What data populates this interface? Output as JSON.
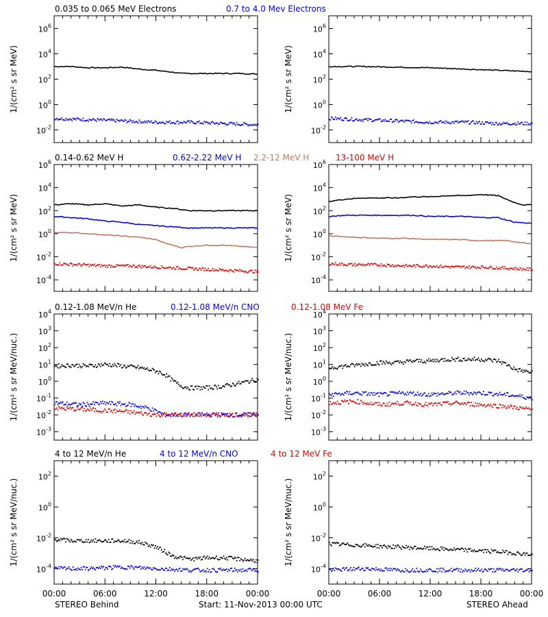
{
  "colors": {
    "black": "#000000",
    "blue": "#0000ee",
    "tan": "#c07860",
    "red": "#e00000"
  },
  "x_ticks": [
    "00:00",
    "06:00",
    "12:00",
    "18:00",
    "00:00"
  ],
  "footer": {
    "left": "STEREO Behind",
    "center": "Start: 11-Nov-2013 00:00 UTC",
    "right": "STEREO Ahead"
  },
  "rows": [
    {
      "ylabel": "1/(cm² s sr MeV)",
      "legend": [
        {
          "text": "0.035 to 0.065 MeV Electrons",
          "color": "black"
        },
        {
          "text": "0.7 to 4.0 Mev Electrons",
          "color": "blue"
        }
      ],
      "y_ticks": [
        {
          "base": "10",
          "exp": "6",
          "v": 6
        },
        {
          "base": "10",
          "exp": "4",
          "v": 4
        },
        {
          "base": "10",
          "exp": "2",
          "v": 2
        },
        {
          "base": "10",
          "exp": "0",
          "v": 0
        },
        {
          "base": "10",
          "exp": "-2",
          "v": -2
        }
      ]
    },
    {
      "ylabel": "1/(cm² s sr MeV)",
      "legend": [
        {
          "text": "0.14-0.62 MeV H",
          "color": "black"
        },
        {
          "text": "0.62-2.22 MeV H",
          "color": "blue"
        },
        {
          "text": "2.2-12 MeV H",
          "color": "tan"
        },
        {
          "text": "13-100 MeV H",
          "color": "red"
        }
      ],
      "y_ticks": [
        {
          "base": "10",
          "exp": "6",
          "v": 6
        },
        {
          "base": "10",
          "exp": "4",
          "v": 4
        },
        {
          "base": "10",
          "exp": "2",
          "v": 2
        },
        {
          "base": "10",
          "exp": "0",
          "v": 0
        },
        {
          "base": "10",
          "exp": "-2",
          "v": -2
        },
        {
          "base": "10",
          "exp": "-4",
          "v": -4
        }
      ]
    },
    {
      "ylabel": "1/(cm² s sr MeV/nuc.)",
      "legend": [
        {
          "text": "0.12-1.08 MeV/n He",
          "color": "black"
        },
        {
          "text": "0.12-1.08 MeV/n CNO",
          "color": "blue"
        },
        {
          "text": "0.12-1.08 MeV Fe",
          "color": "red"
        }
      ],
      "y_ticks": [
        {
          "base": "10",
          "exp": "4",
          "v": 4
        },
        {
          "base": "10",
          "exp": "3",
          "v": 3
        },
        {
          "base": "10",
          "exp": "2",
          "v": 2
        },
        {
          "base": "10",
          "exp": "1",
          "v": 1
        },
        {
          "base": "10",
          "exp": "0",
          "v": 0
        },
        {
          "base": "10",
          "exp": "-1",
          "v": -1
        },
        {
          "base": "10",
          "exp": "-2",
          "v": -2
        },
        {
          "base": "10",
          "exp": "-3",
          "v": -3
        }
      ]
    },
    {
      "ylabel": "1/(cm² s sr MeV/nuc.)",
      "legend": [
        {
          "text": "4 to 12 MeV/n He",
          "color": "black"
        },
        {
          "text": "4 to 12 MeV/n CNO",
          "color": "blue"
        },
        {
          "text": "4 to 12 MeV Fe",
          "color": "red"
        }
      ],
      "y_ticks": [
        {
          "base": "10",
          "exp": "2",
          "v": 2
        },
        {
          "base": "10",
          "exp": "0",
          "v": 0
        },
        {
          "base": "10",
          "exp": "-2",
          "v": -2
        },
        {
          "base": "10",
          "exp": "-4",
          "v": -4
        }
      ]
    }
  ],
  "chart_data": [
    {
      "type": "line",
      "panel": "Behind electrons",
      "y_scale": "log",
      "ylim_log10": [
        -3,
        7
      ],
      "x_hours": [
        0,
        24
      ],
      "series": [
        {
          "name": "0.035 to 0.065 MeV Electrons",
          "color": "black",
          "style": "line",
          "x": [
            0,
            2,
            4,
            6,
            8,
            10,
            12,
            14,
            15,
            16,
            18,
            20,
            22,
            24
          ],
          "log10": [
            3.0,
            3.0,
            2.9,
            2.9,
            2.95,
            2.8,
            2.7,
            2.55,
            2.45,
            2.45,
            2.45,
            2.45,
            2.45,
            2.4
          ]
        },
        {
          "name": "0.7 to 4.0 Mev Electrons",
          "color": "blue",
          "style": "dots",
          "x": [
            0,
            4,
            8,
            12,
            16,
            20,
            24
          ],
          "log10": [
            -1.1,
            -1.2,
            -1.3,
            -1.4,
            -1.4,
            -1.5,
            -1.6
          ]
        }
      ]
    },
    {
      "type": "line",
      "panel": "Ahead electrons",
      "y_scale": "log",
      "ylim_log10": [
        -3,
        7
      ],
      "x_hours": [
        0,
        24
      ],
      "series": [
        {
          "name": "0.035 to 0.065 MeV Electrons",
          "color": "black",
          "style": "line",
          "x": [
            0,
            4,
            8,
            12,
            16,
            20,
            24
          ],
          "log10": [
            3.0,
            3.0,
            2.95,
            2.9,
            2.8,
            2.7,
            2.6
          ]
        },
        {
          "name": "0.7 to 4.0 Mev Electrons",
          "color": "blue",
          "style": "dots",
          "x": [
            0,
            4,
            8,
            12,
            16,
            20,
            24
          ],
          "log10": [
            -1.1,
            -1.2,
            -1.3,
            -1.4,
            -1.4,
            -1.5,
            -1.5
          ]
        }
      ]
    },
    {
      "type": "line",
      "panel": "Behind protons",
      "y_scale": "log",
      "ylim_log10": [
        -5,
        6
      ],
      "x_hours": [
        0,
        24
      ],
      "series": [
        {
          "name": "0.14-0.62 MeV H",
          "color": "black",
          "style": "line",
          "x": [
            0,
            2,
            4,
            6,
            8,
            10,
            12,
            14,
            16,
            18,
            20,
            22,
            24
          ],
          "log10": [
            2.5,
            2.6,
            2.5,
            2.6,
            2.4,
            2.5,
            2.3,
            2.2,
            2.0,
            2.0,
            2.0,
            2.0,
            2.0
          ]
        },
        {
          "name": "0.62-2.22 MeV H",
          "color": "blue",
          "style": "line",
          "x": [
            0,
            2,
            4,
            6,
            8,
            10,
            12,
            14,
            16,
            18,
            20,
            22,
            24
          ],
          "log10": [
            1.5,
            1.4,
            1.3,
            1.1,
            1.0,
            0.8,
            0.7,
            0.6,
            0.5,
            0.5,
            0.5,
            0.5,
            0.5
          ]
        },
        {
          "name": "2.2-12 MeV H",
          "color": "tan",
          "style": "line",
          "x": [
            0,
            2,
            4,
            6,
            8,
            10,
            12,
            13,
            14,
            15,
            16,
            18,
            20,
            22,
            24
          ],
          "log10": [
            0.1,
            0.1,
            0.0,
            -0.1,
            -0.2,
            -0.3,
            -0.5,
            -0.8,
            -1.0,
            -1.2,
            -1.1,
            -1.0,
            -1.0,
            -1.1,
            -1.2
          ]
        },
        {
          "name": "13-100 MeV H",
          "color": "red",
          "style": "dots",
          "x": [
            0,
            3,
            6,
            9,
            12,
            15,
            18,
            21,
            24
          ],
          "log10": [
            -2.6,
            -2.7,
            -2.8,
            -2.8,
            -2.9,
            -3.0,
            -3.1,
            -3.2,
            -3.3
          ]
        }
      ]
    },
    {
      "type": "line",
      "panel": "Ahead protons",
      "y_scale": "log",
      "ylim_log10": [
        -5,
        6
      ],
      "x_hours": [
        0,
        24
      ],
      "series": [
        {
          "name": "0.14-0.62 MeV H",
          "color": "black",
          "style": "line",
          "x": [
            0,
            2,
            4,
            6,
            8,
            10,
            12,
            14,
            16,
            18,
            20,
            21,
            22,
            23,
            24
          ],
          "log10": [
            2.8,
            3.0,
            3.1,
            3.1,
            3.1,
            3.2,
            3.2,
            3.3,
            3.3,
            3.4,
            3.3,
            3.0,
            2.7,
            2.5,
            2.5
          ]
        },
        {
          "name": "0.62-2.22 MeV H",
          "color": "blue",
          "style": "line",
          "x": [
            0,
            2,
            4,
            6,
            8,
            10,
            12,
            14,
            16,
            18,
            20,
            21,
            22,
            24
          ],
          "log10": [
            1.5,
            1.6,
            1.6,
            1.6,
            1.6,
            1.6,
            1.5,
            1.5,
            1.5,
            1.4,
            1.4,
            1.2,
            1.0,
            0.9
          ]
        },
        {
          "name": "2.2-12 MeV H",
          "color": "tan",
          "style": "line",
          "x": [
            0,
            3,
            6,
            9,
            12,
            15,
            18,
            21,
            22,
            24
          ],
          "log10": [
            -0.2,
            -0.3,
            -0.4,
            -0.4,
            -0.5,
            -0.5,
            -0.6,
            -0.6,
            -0.7,
            -0.9
          ]
        },
        {
          "name": "13-100 MeV H",
          "color": "red",
          "style": "dots",
          "x": [
            0,
            3,
            6,
            9,
            12,
            15,
            18,
            21,
            24
          ],
          "log10": [
            -2.6,
            -2.7,
            -2.7,
            -2.8,
            -2.8,
            -2.9,
            -2.9,
            -3.0,
            -3.1
          ]
        }
      ]
    },
    {
      "type": "scatter",
      "panel": "Behind 0.12-1.08 MeV/n",
      "y_scale": "log",
      "ylim_log10": [
        -3.5,
        4
      ],
      "x_hours": [
        0,
        24
      ],
      "series": [
        {
          "name": "0.12-1.08 MeV/n He",
          "color": "black",
          "style": "dots",
          "x": [
            0,
            2,
            4,
            6,
            8,
            10,
            12,
            13,
            14,
            15,
            16,
            18,
            20,
            22,
            24
          ],
          "log10": [
            0.9,
            0.95,
            0.9,
            1.0,
            0.9,
            0.8,
            0.6,
            0.4,
            0.0,
            -0.3,
            -0.4,
            -0.4,
            -0.3,
            -0.1,
            0.1
          ]
        },
        {
          "name": "0.12-1.08 MeV/n CNO",
          "color": "blue",
          "style": "dots",
          "x": [
            0,
            3,
            6,
            9,
            11,
            13,
            16,
            20,
            24
          ],
          "log10": [
            -1.3,
            -1.4,
            -1.3,
            -1.4,
            -1.6,
            -2.0,
            -2.0,
            -2.0,
            -2.0
          ]
        },
        {
          "name": "0.12-1.08 MeV Fe",
          "color": "red",
          "style": "dots",
          "x": [
            0,
            4,
            8,
            12,
            16,
            20,
            24
          ],
          "log10": [
            -1.6,
            -1.7,
            -1.8,
            -2.0,
            -2.0,
            -2.0,
            -2.0
          ]
        }
      ]
    },
    {
      "type": "scatter",
      "panel": "Ahead 0.12-1.08 MeV/n",
      "y_scale": "log",
      "ylim_log10": [
        -3.5,
        4
      ],
      "x_hours": [
        0,
        24
      ],
      "series": [
        {
          "name": "0.12-1.08 MeV/n He",
          "color": "black",
          "style": "dots",
          "x": [
            0,
            2,
            4,
            6,
            8,
            10,
            12,
            14,
            16,
            18,
            20,
            21,
            22,
            24
          ],
          "log10": [
            0.8,
            0.9,
            1.0,
            1.1,
            1.1,
            1.2,
            1.2,
            1.3,
            1.3,
            1.3,
            1.2,
            1.0,
            0.7,
            0.5
          ]
        },
        {
          "name": "0.12-1.08 MeV/n CNO",
          "color": "blue",
          "style": "dots",
          "x": [
            0,
            3,
            6,
            9,
            12,
            15,
            18,
            21,
            24
          ],
          "log10": [
            -0.8,
            -0.7,
            -0.8,
            -0.7,
            -0.8,
            -0.7,
            -0.7,
            -0.8,
            -1.0
          ]
        },
        {
          "name": "0.12-1.08 MeV Fe",
          "color": "red",
          "style": "dots",
          "x": [
            0,
            3,
            6,
            9,
            12,
            15,
            18,
            21,
            24
          ],
          "log10": [
            -1.3,
            -1.2,
            -1.4,
            -1.3,
            -1.4,
            -1.3,
            -1.4,
            -1.5,
            -1.7
          ]
        }
      ]
    },
    {
      "type": "scatter",
      "panel": "Behind 4 to 12 MeV/n",
      "y_scale": "log",
      "ylim_log10": [
        -5,
        3
      ],
      "x_hours": [
        0,
        24
      ],
      "series": [
        {
          "name": "4 to 12 MeV/n He",
          "color": "black",
          "style": "dots",
          "x": [
            0,
            2,
            4,
            6,
            8,
            10,
            12,
            13,
            14,
            16,
            18,
            20,
            22,
            24
          ],
          "log10": [
            -2.1,
            -2.2,
            -2.2,
            -2.2,
            -2.2,
            -2.3,
            -2.6,
            -2.9,
            -3.2,
            -3.4,
            -3.3,
            -3.3,
            -3.4,
            -3.5
          ]
        },
        {
          "name": "4 to 12 MeV/n CNO",
          "color": "blue",
          "style": "dots",
          "x": [
            0,
            4,
            8,
            12,
            16,
            20,
            24
          ],
          "log10": [
            -4.0,
            -4.0,
            -3.9,
            -4.0,
            -4.1,
            -4.1,
            -4.1
          ]
        }
      ]
    },
    {
      "type": "scatter",
      "panel": "Ahead 4 to 12 MeV/n",
      "y_scale": "log",
      "ylim_log10": [
        -5,
        3
      ],
      "x_hours": [
        0,
        24
      ],
      "series": [
        {
          "name": "4 to 12 MeV/n He",
          "color": "black",
          "style": "dots",
          "x": [
            0,
            4,
            8,
            12,
            16,
            20,
            24
          ],
          "log10": [
            -2.4,
            -2.5,
            -2.6,
            -2.7,
            -2.8,
            -2.9,
            -3.1
          ]
        },
        {
          "name": "4 to 12 MeV/n CNO",
          "color": "blue",
          "style": "dots",
          "x": [
            0,
            4,
            8,
            12,
            16,
            20,
            24
          ],
          "log10": [
            -4.1,
            -4.0,
            -4.1,
            -4.1,
            -4.1,
            -4.1,
            -4.1
          ]
        }
      ]
    }
  ]
}
